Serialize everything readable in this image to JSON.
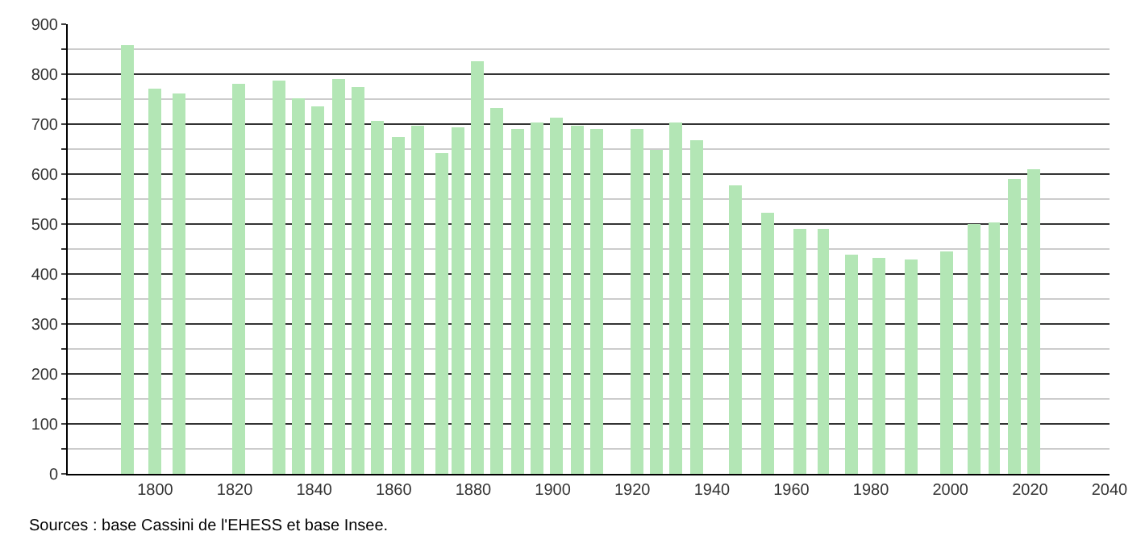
{
  "chart_data": {
    "type": "bar",
    "x": [
      1793,
      1800,
      1806,
      1821,
      1831,
      1836,
      1841,
      1846,
      1851,
      1856,
      1861,
      1866,
      1872,
      1876,
      1881,
      1886,
      1891,
      1896,
      1901,
      1906,
      1911,
      1921,
      1926,
      1931,
      1936,
      1946,
      1954,
      1962,
      1968,
      1975,
      1982,
      1990,
      1999,
      2006,
      2011,
      2016,
      2021
    ],
    "values": [
      857,
      772,
      762,
      780,
      786,
      752,
      734,
      789,
      775,
      706,
      675,
      697,
      641,
      694,
      827,
      731,
      691,
      703,
      712,
      697,
      691,
      691,
      650,
      704,
      669,
      579,
      524,
      491,
      491,
      438,
      432,
      429,
      446,
      500,
      504,
      591,
      609
    ],
    "color": "#b3e6b5",
    "xlim": [
      1778,
      2040
    ],
    "xticks": [
      1800,
      1820,
      1840,
      1860,
      1880,
      1900,
      1920,
      1940,
      1960,
      1980,
      2000,
      2020,
      2040
    ],
    "ylim": [
      0,
      900
    ],
    "yticks": [
      0,
      100,
      200,
      300,
      400,
      500,
      600,
      700,
      800,
      900
    ],
    "grid": "y",
    "annotations": [
      "Sources : base Cassini de l'EHESS et base Insee."
    ]
  }
}
